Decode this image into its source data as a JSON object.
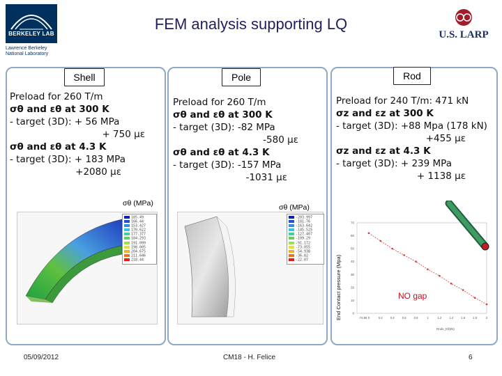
{
  "header": {
    "title": "FEM  analysis supporting LQ",
    "berkeley_logo_text": "BERKELEY LAB",
    "berkeley_sub": [
      "Lawrence Berkeley",
      "National Laboratory"
    ],
    "larp_logo_text": "U.S. LARP"
  },
  "shell": {
    "tab": "Shell",
    "lines": [
      "Preload for 260 T/m",
      "σθ and εθ at 300 K",
      "- target (3D): + 56  MPa",
      "+ 750  με",
      "σθ and εθ at 4.3 K",
      "- target (3D): + 183 MPa",
      "+2080  με"
    ],
    "plot_label": "σθ (MPa)",
    "legend": [
      "185.49",
      "166.44",
      "153.427",
      "170.622",
      "177.377",
      "184.293",
      "191.099",
      "198.005",
      "204.675",
      "211.646",
      "218.44"
    ]
  },
  "pole": {
    "tab": "Pole",
    "lines": [
      "Preload for 260 T/m",
      "σθ and εθ at 300 K",
      "- target (3D): -82 MPa",
      "-580  με",
      "σθ and εθ at 4.3 K",
      "- target (3D): -157 MPa",
      "-1031  με"
    ],
    "plot_label": "σθ (MPa)",
    "legend": [
      "-203.997",
      "-181.76",
      "-163.642",
      "-145.525",
      "-127.407",
      "-109.29",
      "-91.172",
      "-73.055",
      "-54.938",
      "-36.82",
      "-22.07"
    ]
  },
  "rod": {
    "tab": "Rod",
    "lines": [
      "Preload for 240 T/m: 471 kN",
      "σz and εz at 300 K",
      "- target (3D): +88 Mpa (178 kN)",
      "+455  με",
      "σz and εz at 4.3 K",
      "- target (3D): +  239 MPa",
      "+ 1138  με"
    ],
    "y_axis_label": "End Contact pressure (Mpa)",
    "no_gap": "NO gap",
    "x_axis_label": "Rods_Kf(kN)"
  },
  "chart_data": {
    "type": "line",
    "title": "",
    "ylabel": "End Contact pressure (Mpa)",
    "xlabel": "",
    "ylim": [
      0,
      70
    ],
    "y_ticks": [
      "0",
      "10",
      "20",
      "30",
      "40",
      "50",
      "60",
      "70"
    ],
    "x_ticks": [
      "-73.56",
      "0",
      "0.2",
      "0.4",
      "0.6",
      "0.8",
      "1",
      "1.2",
      "1.4",
      "1.6",
      "1.8",
      "2"
    ],
    "x": [
      0,
      0.2,
      0.4,
      0.6,
      0.8,
      1.0,
      1.2,
      1.4,
      1.6,
      1.8,
      2.0
    ],
    "series": [
      {
        "values": [
          62,
          56,
          50,
          45,
          40,
          34,
          29,
          23,
          18,
          12,
          7
        ]
      }
    ]
  },
  "footer": {
    "date": "05/09/2012",
    "center": "CM18 - H. Felice",
    "page": "6"
  },
  "colors": {
    "title": "#1f1f5f",
    "panel_border": "#8fa7c9",
    "lbnl_blue": "#00305e",
    "plot_line": "#d04040",
    "rod_green": "#2e7d4f"
  }
}
